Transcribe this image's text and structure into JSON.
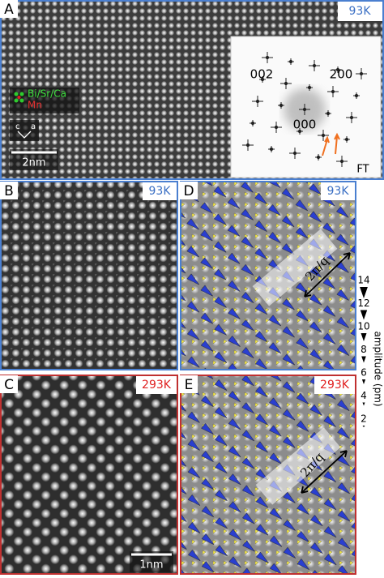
{
  "panels": [
    {
      "label": "A",
      "temperature": "93K"
    },
    {
      "label": "B",
      "temperature": "93K"
    },
    {
      "label": "C",
      "temperature": "293K"
    },
    {
      "label": "D",
      "temperature": "93K"
    },
    {
      "label": "E",
      "temperature": "293K"
    }
  ],
  "legend": {
    "items": [
      "Bi/Sr/Ca",
      "Mn"
    ]
  },
  "axis_labels": [
    "c",
    "a"
  ],
  "scale_bars": [
    "2nm",
    "1nm"
  ],
  "ft": {
    "title": "FT",
    "peaks": [
      "002",
      "200",
      "000"
    ]
  },
  "wavelength_labels": [
    "2π/q",
    "2π/q"
  ],
  "amplitude_scale": {
    "label": "amplitude (pm)",
    "ticks": [
      14,
      12,
      10,
      8,
      6,
      4,
      2
    ]
  }
}
